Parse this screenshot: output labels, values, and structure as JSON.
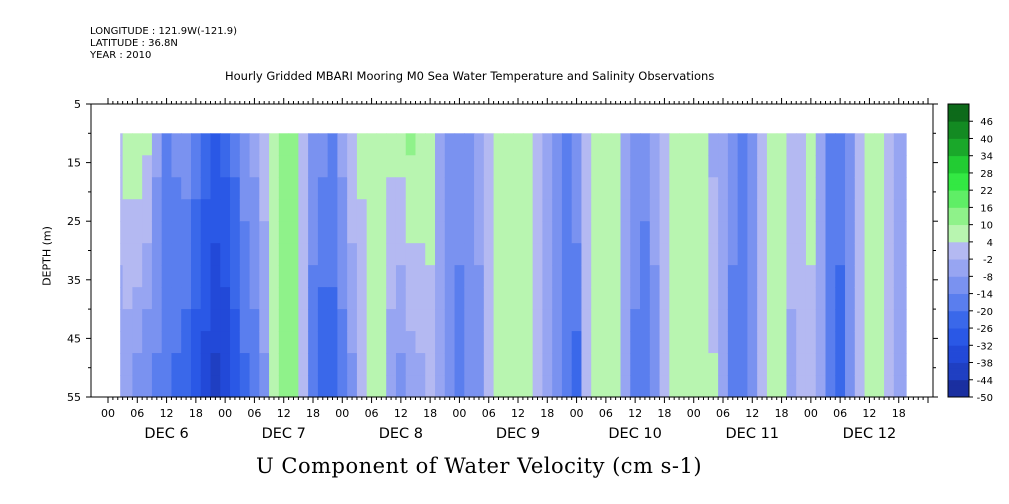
{
  "header": {
    "longitude": "LONGITUDE : 121.9W(-121.9)",
    "latitude": "LATITUDE : 36.8N",
    "year": "YEAR : 2010"
  },
  "chart_data": {
    "type": "heatmap",
    "title": "Hourly Gridded MBARI Mooring M0 Sea Water Temperature and Salinity Observations",
    "xlabel": "U Component of Water Velocity (cm s-1)",
    "ylabel": "DEPTH (m)",
    "y_ticks": [
      "5",
      "15",
      "25",
      "35",
      "45",
      "55"
    ],
    "ylim": [
      5,
      55
    ],
    "y_inverted": true,
    "data_depth_range": [
      10,
      55
    ],
    "x_hour_ticks": [
      "00",
      "06",
      "12",
      "18",
      "00",
      "06",
      "12",
      "18",
      "00",
      "06",
      "12",
      "18",
      "00",
      "06",
      "12",
      "18",
      "00",
      "06",
      "12",
      "18",
      "00",
      "06",
      "12",
      "18",
      "00",
      "06",
      "12",
      "18"
    ],
    "x_day_labels": [
      "DEC  6",
      "DEC  7",
      "DEC  8",
      "DEC  9",
      "DEC 10",
      "DEC 11",
      "DEC 12"
    ],
    "colorbar_labels": [
      "46",
      "40",
      "34",
      "28",
      "22",
      "16",
      "10",
      "4",
      "-2",
      "-8",
      "-14",
      "-20",
      "-26",
      "-32",
      "-38",
      "-44",
      "-50"
    ],
    "colorbar_range": [
      -50,
      52
    ],
    "colors": {
      "strong_negative": "#2255e8",
      "negative": "#8f9ff0",
      "weak_negative": "#b4b9f2",
      "weak_positive": "#9af29a",
      "positive": "#33e843"
    },
    "data_start_hour": 2.5,
    "data_end_hour": 163.5,
    "time_columns_hours": [
      2,
      4,
      6,
      8,
      10,
      12,
      14,
      16,
      18,
      20,
      22,
      24,
      26,
      28,
      30,
      32,
      34,
      36,
      38,
      40,
      42,
      44,
      46,
      48,
      50,
      52,
      54,
      56,
      58,
      60,
      62,
      64,
      66,
      68,
      70,
      72,
      74,
      76,
      78,
      80,
      82,
      84,
      86,
      88,
      90,
      92,
      94,
      96,
      98,
      100,
      102,
      104,
      106,
      108,
      110,
      112,
      114,
      116,
      118,
      120,
      122,
      124,
      126,
      128,
      130,
      132,
      134,
      136,
      138,
      140,
      142,
      144,
      146,
      148,
      150,
      152,
      154,
      156,
      158,
      160,
      162,
      164
    ],
    "u_surface": [
      2,
      8,
      10,
      6,
      -6,
      -14,
      -12,
      -10,
      -16,
      -22,
      -26,
      -24,
      -18,
      -10,
      -6,
      2,
      8,
      12,
      10,
      2,
      -8,
      -12,
      -14,
      -6,
      4,
      6,
      8,
      10,
      6,
      8,
      12,
      10,
      6,
      -6,
      -10,
      -12,
      -10,
      -6,
      4,
      8,
      10,
      8,
      6,
      4,
      -6,
      -14,
      -16,
      -8,
      4,
      6,
      8,
      6,
      -4,
      -10,
      -12,
      -6,
      4,
      8,
      10,
      6,
      4,
      -4,
      -6,
      -12,
      -16,
      -8,
      4,
      6,
      8,
      2,
      4,
      6,
      -4,
      -14,
      -16,
      -10,
      2,
      6,
      8,
      4,
      -4,
      -6
    ],
    "u_bottom": [
      -6,
      -8,
      -12,
      -14,
      -16,
      -18,
      -22,
      -26,
      -32,
      -36,
      -40,
      -38,
      -30,
      -22,
      -18,
      -10,
      8,
      14,
      12,
      4,
      -20,
      -26,
      -24,
      -18,
      -10,
      -2,
      4,
      6,
      -6,
      -12,
      -6,
      -4,
      2,
      -4,
      -12,
      -16,
      -14,
      -10,
      2,
      6,
      8,
      4,
      4,
      2,
      -4,
      -10,
      -14,
      -24,
      -2,
      6,
      8,
      4,
      -8,
      -16,
      -18,
      -10,
      2,
      6,
      8,
      4,
      6,
      6,
      -2,
      -16,
      -20,
      -12,
      2,
      6,
      8,
      -4,
      -2,
      2,
      -2,
      -20,
      -24,
      -12,
      2,
      6,
      6,
      2,
      -2,
      -8
    ]
  }
}
